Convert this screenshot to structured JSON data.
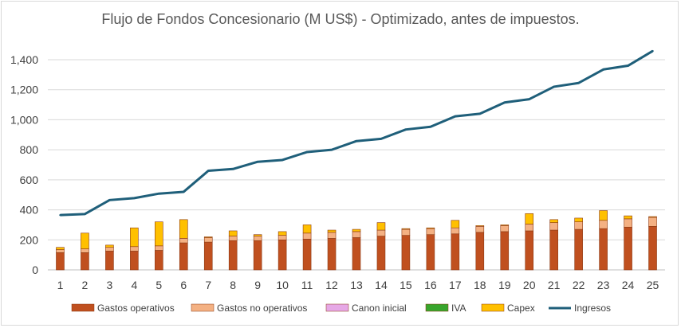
{
  "chart_data": {
    "type": "bar",
    "title": "Flujo de Fondos Concesionario (M US$) - Optimizado, antes de impuestos.",
    "categories": [
      "1",
      "2",
      "3",
      "4",
      "5",
      "6",
      "7",
      "8",
      "9",
      "10",
      "11",
      "12",
      "13",
      "14",
      "15",
      "16",
      "17",
      "18",
      "19",
      "20",
      "21",
      "22",
      "23",
      "24",
      "25"
    ],
    "ylim": [
      0,
      1400
    ],
    "yticks": [
      0,
      200,
      400,
      600,
      800,
      1000,
      1200,
      1400
    ],
    "ytick_labels": [
      "0",
      "200",
      "400",
      "600",
      "800",
      "1,000",
      "1,200",
      "1,400"
    ],
    "stacked": true,
    "legend_position": "bottom",
    "grid": true,
    "series": [
      {
        "name": "Gastos operativos",
        "type": "bar",
        "color": "#c0501f",
        "values": [
          115,
          115,
          125,
          125,
          130,
          180,
          185,
          195,
          195,
          200,
          205,
          210,
          215,
          225,
          230,
          235,
          240,
          250,
          255,
          260,
          265,
          270,
          275,
          285,
          290
        ]
      },
      {
        "name": "Gastos no operativos",
        "type": "bar",
        "color": "#f4b183",
        "values": [
          20,
          25,
          25,
          30,
          30,
          30,
          30,
          30,
          30,
          30,
          40,
          40,
          40,
          40,
          40,
          40,
          40,
          40,
          40,
          45,
          50,
          50,
          55,
          55,
          60
        ]
      },
      {
        "name": "Canon inicial",
        "type": "bar",
        "color": "#e6a8e6",
        "values": [
          0,
          0,
          0,
          0,
          0,
          0,
          0,
          0,
          0,
          0,
          0,
          0,
          0,
          0,
          0,
          0,
          0,
          0,
          0,
          0,
          0,
          0,
          0,
          0,
          0
        ]
      },
      {
        "name": "IVA",
        "type": "bar",
        "color": "#38a52c",
        "values": [
          0,
          0,
          0,
          0,
          0,
          0,
          0,
          0,
          0,
          0,
          0,
          0,
          0,
          0,
          0,
          0,
          0,
          0,
          0,
          0,
          0,
          0,
          0,
          0,
          0
        ]
      },
      {
        "name": "Capex",
        "type": "bar",
        "color": "#ffc000",
        "values": [
          15,
          105,
          15,
          125,
          160,
          125,
          5,
          35,
          10,
          25,
          55,
          15,
          15,
          50,
          5,
          5,
          50,
          5,
          5,
          70,
          20,
          25,
          65,
          20,
          5
        ]
      },
      {
        "name": "Ingresos",
        "type": "line",
        "color": "#1f5f7a",
        "values": [
          365,
          372,
          465,
          478,
          508,
          520,
          660,
          672,
          720,
          732,
          785,
          800,
          858,
          873,
          935,
          953,
          1023,
          1040,
          1115,
          1137,
          1220,
          1245,
          1335,
          1360,
          1458
        ]
      }
    ]
  }
}
